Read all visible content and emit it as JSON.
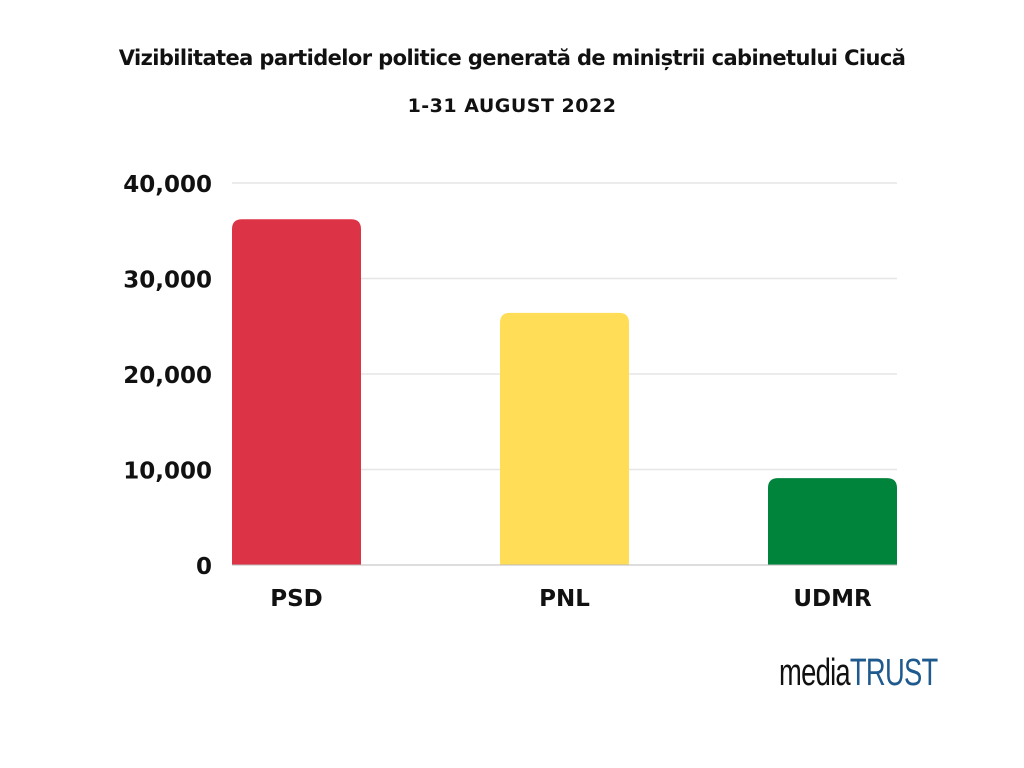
{
  "chart_data": {
    "type": "bar",
    "title": "Vizibilitatea partidelor politice generată de miniștrii cabinetului Ciucă",
    "subtitle": "1-31 AUGUST 2022",
    "categories": [
      "PSD",
      "PNL",
      "UDMR"
    ],
    "values": [
      36200,
      26400,
      9100
    ],
    "colors": [
      "#dd3347",
      "#ffdd57",
      "#00833b"
    ],
    "ylim": [
      0,
      40000
    ],
    "yticks": [
      0,
      10000,
      20000,
      30000,
      40000
    ],
    "ytick_labels": [
      "0",
      "10,000",
      "20,000",
      "30,000",
      "40,000"
    ],
    "grid": true,
    "xlabel": "",
    "ylabel": ""
  },
  "logo": {
    "part1": "media",
    "part2": "TRUST"
  }
}
